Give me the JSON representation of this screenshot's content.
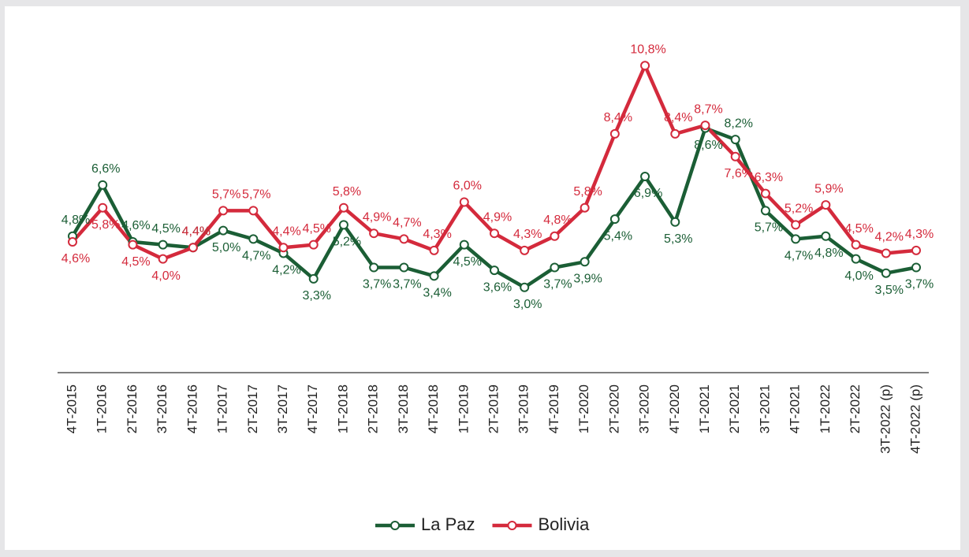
{
  "chart_data": {
    "type": "line",
    "categories": [
      "4T-2015",
      "1T-2016",
      "2T-2016",
      "3T-2016",
      "4T-2016",
      "1T-2017",
      "2T-2017",
      "3T-2017",
      "4T-2017",
      "1T-2018",
      "2T-2018",
      "3T-2018",
      "4T-2018",
      "1T-2019",
      "2T-2019",
      "3T-2019",
      "4T-2019",
      "1T-2020",
      "2T-2020",
      "3T-2020",
      "4T-2020",
      "1T-2021",
      "2T-2021",
      "3T-2021",
      "4T-2021",
      "1T-2022",
      "2T-2022",
      "3T-2022 (p)",
      "4T-2022 (p)"
    ],
    "series": [
      {
        "name": "La Paz",
        "color": "#1b5e35",
        "values": [
          4.8,
          6.6,
          4.6,
          4.5,
          4.4,
          5.0,
          4.7,
          4.2,
          3.3,
          5.2,
          3.7,
          3.7,
          3.4,
          4.5,
          3.6,
          3.0,
          3.7,
          3.9,
          5.4,
          6.9,
          5.3,
          8.6,
          8.2,
          5.7,
          4.7,
          4.8,
          4.0,
          3.5,
          3.7
        ],
        "value_labels": [
          "4,8%",
          "6,6%",
          "4,6%",
          "4,5%",
          "4,4%",
          "5,0%",
          "4,7%",
          "4,2%",
          "3,3%",
          "5,2%",
          "3,7%",
          "3,7%",
          "3,4%",
          "4,5%",
          "3,6%",
          "3,0%",
          "3,7%",
          "3,9%",
          "5,4%",
          "6,9%",
          "5,3%",
          "8,6%",
          "8,2%",
          "5,7%",
          "4,7%",
          "4,8%",
          "4,0%",
          "3,5%",
          "3,7%"
        ]
      },
      {
        "name": "Bolivia",
        "color": "#d42a3c",
        "values": [
          4.6,
          5.8,
          4.5,
          4.0,
          4.4,
          5.7,
          5.7,
          4.4,
          4.5,
          5.8,
          4.9,
          4.7,
          4.3,
          6.0,
          4.9,
          4.3,
          4.8,
          5.8,
          8.4,
          10.8,
          8.4,
          8.7,
          7.6,
          6.3,
          5.2,
          5.9,
          4.5,
          4.2,
          4.3
        ],
        "value_labels": [
          "4,6%",
          "5,8%",
          "4,5%",
          "4,0%",
          "4,4%",
          "5,7%",
          "5,7%",
          "4,4%",
          "4,5%",
          "5,8%",
          "4,9%",
          "4,7%",
          "4,3%",
          "6,0%",
          "4,9%",
          "4,3%",
          "4,8%",
          "5,8%",
          "8,4%",
          "10,8%",
          "8,4%",
          "8,7%",
          "7,6%",
          "6,3%",
          "5,2%",
          "5,9%",
          "4,5%",
          "4,2%",
          "4,3%"
        ]
      }
    ],
    "ylim": [
      0,
      12
    ],
    "legend": "bottom"
  }
}
